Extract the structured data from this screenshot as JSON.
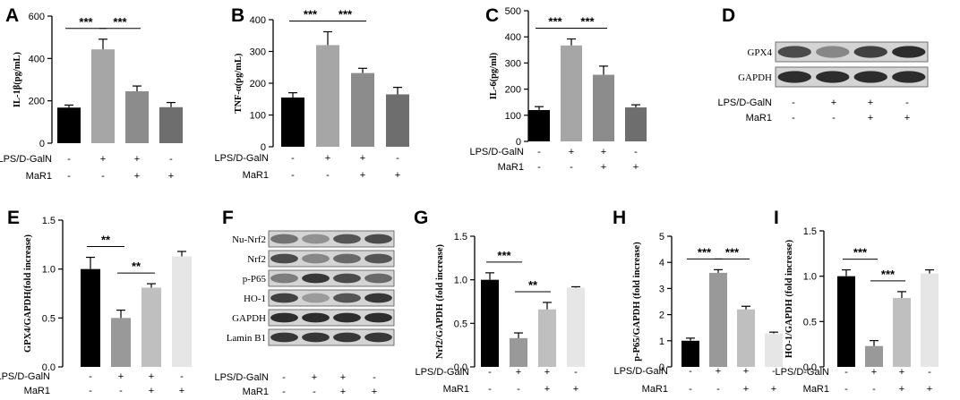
{
  "chart_data": [
    {
      "panel": "A",
      "type": "bar",
      "ylabel": "IL-1β(pg/mL)",
      "ylim": [
        0,
        600
      ],
      "yticks": [
        0,
        200,
        400,
        600
      ],
      "values": [
        168,
        443,
        245,
        170
      ],
      "errors": [
        12,
        48,
        25,
        22
      ],
      "colors": [
        "#000000",
        "#a6a6a6",
        "#8c8c8c",
        "#6e6e6e"
      ],
      "treatments": {
        "rows": [
          {
            "label": "LPS/D-GalN",
            "signs": [
              "-",
              "+",
              "+",
              "-"
            ]
          },
          {
            "label": "MaR1",
            "signs": [
              "-",
              "-",
              "+",
              "+"
            ]
          }
        ]
      },
      "significance": [
        {
          "from": 0,
          "to": 1,
          "label": "***"
        },
        {
          "from": 1,
          "to": 2,
          "label": "***"
        }
      ]
    },
    {
      "panel": "B",
      "type": "bar",
      "ylabel": "TNF-α(pg/mL)",
      "ylim": [
        0,
        400
      ],
      "yticks": [
        0,
        100,
        200,
        300,
        400
      ],
      "values": [
        155,
        320,
        232,
        165
      ],
      "errors": [
        15,
        42,
        15,
        22
      ],
      "colors": [
        "#000000",
        "#a6a6a6",
        "#8c8c8c",
        "#6e6e6e"
      ],
      "treatments": {
        "rows": [
          {
            "label": "LPS/D-GalN",
            "signs": [
              "-",
              "+",
              "+",
              "-"
            ]
          },
          {
            "label": "MaR1",
            "signs": [
              "-",
              "-",
              "+",
              "+"
            ]
          }
        ]
      },
      "significance": [
        {
          "from": 0,
          "to": 1,
          "label": "***"
        },
        {
          "from": 1,
          "to": 2,
          "label": "***"
        }
      ]
    },
    {
      "panel": "C",
      "type": "bar",
      "ylabel": "IL-6(pg/ml)",
      "ylim": [
        0,
        500
      ],
      "yticks": [
        0,
        100,
        200,
        300,
        400,
        500
      ],
      "values": [
        120,
        367,
        255,
        130
      ],
      "errors": [
        13,
        25,
        33,
        10
      ],
      "colors": [
        "#000000",
        "#a6a6a6",
        "#8c8c8c",
        "#6e6e6e"
      ],
      "treatments": {
        "rows": [
          {
            "label": "LPS/D-GalN",
            "signs": [
              "-",
              "+",
              "+",
              "-"
            ]
          },
          {
            "label": "MaR1",
            "signs": [
              "-",
              "-",
              "+",
              "+"
            ]
          }
        ]
      },
      "significance": [
        {
          "from": 0,
          "to": 1,
          "label": "***"
        },
        {
          "from": 1,
          "to": 2,
          "label": "***"
        }
      ]
    },
    {
      "panel": "E",
      "type": "bar",
      "ylabel": "GPX4/GAPDH(fold increase)",
      "ylim": [
        0,
        1.5
      ],
      "yticks": [
        0.0,
        0.5,
        1.0,
        1.5
      ],
      "values": [
        1.0,
        0.5,
        0.81,
        1.13
      ],
      "errors": [
        0.12,
        0.08,
        0.04,
        0.05
      ],
      "colors": [
        "#000000",
        "#999999",
        "#bfbfbf",
        "#e6e6e6"
      ],
      "treatments": {
        "rows": [
          {
            "label": "LPS/D-GalN",
            "signs": [
              "-",
              "+",
              "+",
              "-"
            ]
          },
          {
            "label": "MaR1",
            "signs": [
              "-",
              "-",
              "+",
              "+"
            ]
          }
        ]
      },
      "significance": [
        {
          "from": 0,
          "to": 1,
          "label": "**"
        },
        {
          "from": 1,
          "to": 2,
          "label": "**"
        }
      ]
    },
    {
      "panel": "G",
      "type": "bar",
      "ylabel": "Nrf2/GAPDH (fold increase)",
      "ylim": [
        0,
        1.5
      ],
      "yticks": [
        0.0,
        0.5,
        1.0,
        1.5
      ],
      "values": [
        1.0,
        0.33,
        0.66,
        0.91
      ],
      "errors": [
        0.08,
        0.06,
        0.08,
        0.01
      ],
      "colors": [
        "#000000",
        "#999999",
        "#bfbfbf",
        "#e6e6e6"
      ],
      "treatments": {
        "rows": [
          {
            "label": "LPS/D-GalN",
            "signs": [
              "-",
              "+",
              "+",
              "-"
            ]
          },
          {
            "label": "MaR1",
            "signs": [
              "-",
              "-",
              "+",
              "+"
            ]
          }
        ]
      },
      "significance": [
        {
          "from": 0,
          "to": 1,
          "label": "***"
        },
        {
          "from": 1,
          "to": 2,
          "label": "**"
        }
      ]
    },
    {
      "panel": "H",
      "type": "bar",
      "ylabel": "p-P65/GAPDH (fold increase)",
      "ylim": [
        0,
        5
      ],
      "yticks": [
        0,
        1,
        2,
        3,
        4,
        5
      ],
      "values": [
        1.0,
        3.6,
        2.2,
        1.28
      ],
      "errors": [
        0.1,
        0.12,
        0.12,
        0.05
      ],
      "colors": [
        "#000000",
        "#999999",
        "#bfbfbf",
        "#e6e6e6"
      ],
      "treatments": {
        "rows": [
          {
            "label": "LPS/D-GalN",
            "signs": [
              "-",
              "+",
              "+",
              "-"
            ]
          },
          {
            "label": "MaR1",
            "signs": [
              "-",
              "-",
              "+",
              "+"
            ]
          }
        ]
      },
      "significance": [
        {
          "from": 0,
          "to": 1,
          "label": "***"
        },
        {
          "from": 1,
          "to": 2,
          "label": "***"
        }
      ]
    },
    {
      "panel": "I",
      "type": "bar",
      "ylabel": "HO-1/GAPDH (fold increase)",
      "ylim": [
        0,
        1.5
      ],
      "yticks": [
        0.0,
        0.5,
        1.0,
        1.5
      ],
      "values": [
        1.0,
        0.23,
        0.76,
        1.03
      ],
      "errors": [
        0.07,
        0.06,
        0.07,
        0.04
      ],
      "colors": [
        "#000000",
        "#999999",
        "#bfbfbf",
        "#e6e6e6"
      ],
      "treatments": {
        "rows": [
          {
            "label": "LPS/D-GalN",
            "signs": [
              "-",
              "+",
              "+",
              "-"
            ]
          },
          {
            "label": "MaR1",
            "signs": [
              "-",
              "-",
              "+",
              "+"
            ]
          }
        ]
      },
      "significance": [
        {
          "from": 0,
          "to": 1,
          "label": "***"
        },
        {
          "from": 1,
          "to": 2,
          "label": "***"
        }
      ]
    }
  ],
  "blots": [
    {
      "panel": "D",
      "bands": [
        "GPX4",
        "GAPDH"
      ],
      "lanes": 4,
      "intensities": [
        [
          0.75,
          0.45,
          0.8,
          0.9
        ],
        [
          0.9,
          0.9,
          0.9,
          0.9
        ]
      ],
      "treatments": {
        "rows": [
          {
            "label": "LPS/D-GalN",
            "signs": [
              "-",
              "+",
              "+",
              "-"
            ]
          },
          {
            "label": "MaR1",
            "signs": [
              "-",
              "-",
              "+",
              "+"
            ]
          }
        ]
      }
    },
    {
      "panel": "F",
      "bands": [
        "Nu-Nrf2",
        "Nrf2",
        "p-P65",
        "HO-1",
        "GAPDH",
        "Lamin B1"
      ],
      "lanes": 4,
      "intensities": [
        [
          0.55,
          0.4,
          0.7,
          0.75
        ],
        [
          0.75,
          0.45,
          0.6,
          0.7
        ],
        [
          0.5,
          0.85,
          0.75,
          0.6
        ],
        [
          0.8,
          0.35,
          0.7,
          0.85
        ],
        [
          0.9,
          0.9,
          0.9,
          0.9
        ],
        [
          0.85,
          0.85,
          0.85,
          0.85
        ]
      ],
      "treatments": {
        "rows": [
          {
            "label": "LPS/D-GalN",
            "signs": [
              "-",
              "+",
              "+",
              "-"
            ]
          },
          {
            "label": "MaR1",
            "signs": [
              "-",
              "-",
              "+",
              "+"
            ]
          }
        ]
      }
    }
  ]
}
